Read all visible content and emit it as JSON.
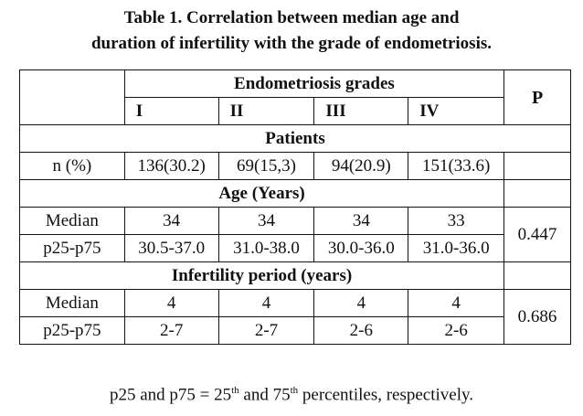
{
  "title": {
    "line1": "Table 1. Correlation between median age and",
    "line2": "duration of infertility with the grade of endometriosis."
  },
  "header": {
    "group_label": "Endometriosis grades",
    "p_label": "P",
    "grades": [
      "I",
      "II",
      "III",
      "IV"
    ]
  },
  "sections": {
    "patients": {
      "label": "Patients",
      "row": {
        "label": "n (%)",
        "values": [
          "136(30.2)",
          "69(15,3)",
          "94(20.9)",
          "151(33.6)"
        ]
      }
    },
    "age": {
      "label": "Age (Years)",
      "rows": [
        {
          "label": "Median",
          "values": [
            "34",
            "34",
            "34",
            "33"
          ]
        },
        {
          "label": "p25-p75",
          "values": [
            "30.5-37.0",
            "31.0-38.0",
            "30.0-36.0",
            "31.0-36.0"
          ]
        }
      ],
      "p": "0.447"
    },
    "infertility": {
      "label": "Infertility period (years)",
      "rows": [
        {
          "label": "Median",
          "values": [
            "4",
            "4",
            "4",
            "4"
          ]
        },
        {
          "label": "p25-p75",
          "values": [
            "2-7",
            "2-7",
            "2-6",
            "2-6"
          ]
        }
      ],
      "p": "0.686"
    }
  },
  "footnote": {
    "part1": "p25 and p75 = 25",
    "sup1": "th",
    "part2": " and 75",
    "sup2": "th",
    "part3": " percentiles, respectively."
  }
}
